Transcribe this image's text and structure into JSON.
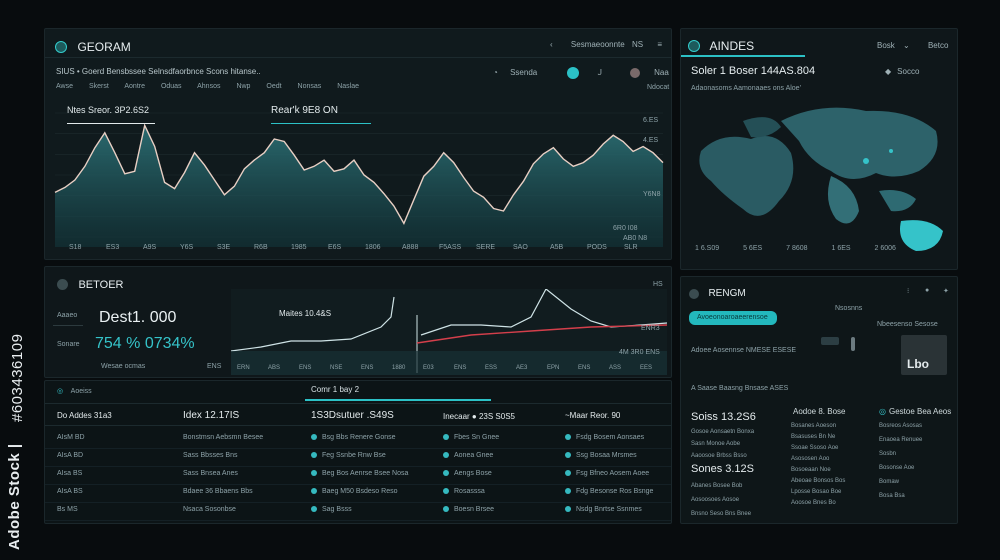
{
  "watermark_side": {
    "brand": "Adobe Stock |",
    "id": "#603436109"
  },
  "main_panel": {
    "title": "GEORAM",
    "top_controls": [
      "Sesmaeoonnte",
      "NS",
      "Ot"
    ],
    "subtitle": "SIUS • Goerd Bensbssee Selnsdfaorbnce Scons hitanse..",
    "tabs": [
      "Awse",
      "Skerst",
      "Aontre",
      "Oduas",
      "Ahnsos",
      "Nwp",
      "Oedt",
      "Nonsas",
      "Naslae",
      "Nrwas",
      "Ndocat"
    ],
    "right_tools": [
      "Ssenda",
      "Naa"
    ],
    "left_metric": "Ntes Sreor.  3P2.6S2",
    "center_metric": "Rear'k  9E8 ON",
    "y_labels": [
      "6.ES",
      "4.ES",
      "Y6N8",
      "6R0 I08",
      "AB0 N8"
    ],
    "x_labels": [
      "S18",
      "ES3",
      "A9S",
      "Y6S",
      "S3E",
      "R6B",
      "1985",
      "E6S",
      "1806",
      "A888",
      "F5ASS",
      "SERE",
      "SAO",
      "A5B",
      "PODS",
      "SLR"
    ],
    "chart_data": {
      "type": "area",
      "values": [
        0.36,
        0.4,
        0.46,
        0.57,
        0.72,
        0.84,
        0.68,
        0.51,
        0.53,
        0.9,
        0.73,
        0.44,
        0.39,
        0.52,
        0.68,
        0.58,
        0.46,
        0.34,
        0.41,
        0.55,
        0.62,
        0.68,
        0.79,
        0.77,
        0.66,
        0.54,
        0.57,
        0.62,
        0.53,
        0.55,
        0.62,
        0.5,
        0.44,
        0.35,
        0.25,
        0.11,
        0.3,
        0.49,
        0.57,
        0.68,
        0.6,
        0.48,
        0.37,
        0.32,
        0.23,
        0.21,
        0.34,
        0.45,
        0.59,
        0.67,
        0.72,
        0.63,
        0.57,
        0.6,
        0.66,
        0.75,
        0.82,
        0.77,
        0.69,
        0.73,
        0.68,
        0.6
      ]
    }
  },
  "map_panel": {
    "title": "AINDES",
    "controls": [
      "Bosk",
      "Betco"
    ],
    "metric": "Soler 1 Boser 144AS.804",
    "metric_side": "Socco",
    "sub": "Adaonasoms Aamonaaes ons Aloe'",
    "bottom_labels": [
      "1 6.S09",
      "5 6ES",
      "7 8608",
      "1 6ES",
      "2 6006"
    ]
  },
  "mid_panel": {
    "title": "BETOER",
    "labels": [
      "Aaaeo",
      "Sonare"
    ],
    "value1": "Dest1. 000",
    "value2": "754 % 0734%",
    "foot": "Wesae ocmas",
    "foot2": "ENS",
    "chart_label": "Maites 10.4&S",
    "right_labels": [
      "HS",
      "ENR3",
      "4M 3R0 ENS"
    ],
    "x_labels": [
      "ERN",
      "ABS",
      "ENS",
      "NSE",
      "ENS",
      "1880",
      "E03",
      "ENS",
      "ESS",
      "AE3",
      "EPN",
      "ENS",
      "ASS",
      "EES"
    ]
  },
  "table_panel": {
    "header_label": "Aoeiss",
    "header_mid": "Comr 1 bay 2",
    "col_titles": [
      "Do Addes  31a3",
      "Idex 12.17IS",
      "1S3Dsutuer .S49S",
      "Inecaar ● 23S     S0S5",
      "~Maar Reor. 90"
    ],
    "rows": [
      [
        "AIsM BD",
        "Bonstmsn Aebsmn Besee",
        "Bsg Bbs Renere  Gonse",
        "Fbes Sn Gnee",
        "Fsdg Bosem Aonsaes"
      ],
      [
        "AIsA BD",
        "Sass Bbsses Bns",
        "Feg Ssnbe Rnw  Bse",
        "Aonea Gnee",
        "Ssg Bosaa Mrsmes"
      ],
      [
        "AIsa BS",
        "Sass Bnsea Anes",
        "Beg Bos Aenrse Bsee Nosa",
        "Aengs Bose",
        "Fsg Bfneo Aosem Aoee"
      ],
      [
        "AIsA BS",
        "Bdaee 36 Bbaens Bbs",
        "Baeg M50 Bsdeso Reso",
        "Rosasssa",
        "Fdg Besonse Ros Bsnge"
      ],
      [
        "Bs MS",
        "Nsaca Sosonbse",
        "Sag Bsss",
        "Boesn Brsee",
        "Nsdg Bnrtse Ssnmes"
      ]
    ]
  },
  "right_panel": {
    "title": "RENGM",
    "button_label": "Avoeonoaroaeerensoe",
    "line1": "Adoee Aosennse  NMESE ESESE",
    "line2": "A Saase Baasng Bnsase  ASES",
    "side_vals": [
      "Nsosnns",
      "Lbo",
      "Nbeesenso Sesose"
    ],
    "stat1": "Soiss  13.2S6",
    "stat2": "Sones  3.12S",
    "col2_title": "Aodoe 8. Bose",
    "col3_title": "Gestoe Bea Aeos",
    "list_left": [
      "Gosoe Aonsaetn Bonxa",
      "Sasn Monoe Aobe",
      "Aaoosoe Brbss Bsso"
    ],
    "list_left2": [
      "Abanes Bosee Bob",
      "Aosoosoes Aosoe",
      "Bnsno Seso Bns Bnee"
    ],
    "list_mid": [
      "Bosanes Aoeson",
      "Bsasuses Bn Ne",
      "Ssoae Ssoso Aoe",
      "Asososen Aoo",
      "Bosoeaan Noe",
      "Abeoae Bonsos Bos",
      "Lposse Bosao Boe",
      "Aoosoe Bnes Bo"
    ],
    "list_right": [
      "Bosreos Asosas",
      "Enaoea Renuee",
      "Sosbn",
      "Bosonse Aoe",
      "Bomaw",
      "Bosa Bsa"
    ]
  },
  "colors": {
    "accent": "#35c3c9",
    "line": "#e8cfc4",
    "red": "#d43f4b"
  }
}
